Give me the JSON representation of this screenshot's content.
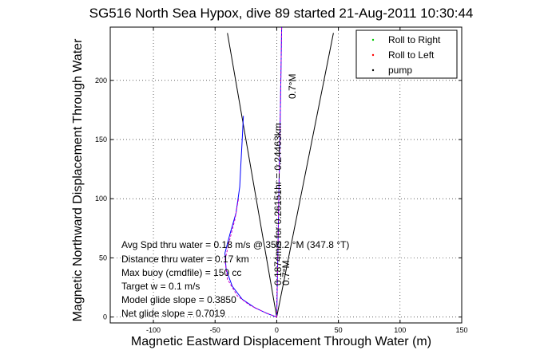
{
  "chart_data": {
    "type": "line",
    "title": "SG516 North Sea Hypox, dive 89 started 21-Aug-2011 10:30:44",
    "xlabel": "Magnetic Eastward Displacement Through Water (m)",
    "ylabel": "Magnetic Northward Displacement Through Water",
    "xlim": [
      -135,
      150
    ],
    "ylim": [
      -5,
      245
    ],
    "xticks": [
      -100,
      -50,
      0,
      50,
      100,
      150
    ],
    "yticks": [
      0,
      50,
      100,
      150,
      200
    ],
    "grid": true,
    "legend_position": "top-right",
    "legend": [
      {
        "label": "Roll to Right",
        "color": "#00cc00"
      },
      {
        "label": "Roll to Left",
        "color": "#ff0000"
      },
      {
        "label": "pump",
        "color": "#000000"
      }
    ],
    "series": [
      {
        "color": "#0000ff",
        "style": "line",
        "points": [
          [
            0,
            0
          ],
          [
            -8,
            3
          ],
          [
            -18,
            8
          ],
          [
            -28,
            15
          ],
          [
            -36,
            26
          ],
          [
            -41,
            40
          ],
          [
            -42,
            54
          ],
          [
            -38,
            70
          ],
          [
            -33,
            88
          ],
          [
            -30,
            110
          ],
          [
            -29,
            130
          ],
          [
            -28,
            150
          ],
          [
            -27,
            170
          ]
        ]
      },
      {
        "color": "#cc00cc",
        "style": "dashed",
        "points": [
          [
            0,
            0
          ],
          [
            -10,
            4
          ],
          [
            -22,
            10
          ],
          [
            -32,
            18
          ],
          [
            -40,
            32
          ],
          [
            -42,
            48
          ],
          [
            -38,
            66
          ],
          [
            -34,
            82
          ],
          [
            -31,
            100
          ]
        ]
      },
      {
        "color": "#0000ff",
        "style": "line",
        "points": [
          [
            0,
            0
          ],
          [
            1,
            60
          ],
          [
            2,
            120
          ],
          [
            3,
            180
          ],
          [
            4,
            245
          ]
        ]
      },
      {
        "color": "#cc00cc",
        "style": "dashed",
        "points": [
          [
            0,
            0
          ],
          [
            1,
            60
          ],
          [
            2,
            120
          ],
          [
            3,
            180
          ],
          [
            4,
            245
          ]
        ]
      }
    ],
    "cone_lines": [
      {
        "points": [
          [
            0,
            0
          ],
          [
            -40,
            240
          ]
        ]
      },
      {
        "points": [
          [
            0,
            0
          ],
          [
            46,
            240
          ]
        ]
      }
    ],
    "annotations": [
      "Avg Spd thru water =  0.18 m/s @ 350.2   °M (347.8 °T)",
      "Distance thru water = 0.17 km",
      "Max buoy (cmdfile) = 150 cc",
      "Target w = 0.1 m/s",
      "Model glide slope = 0.3850",
      "Net glide slope = 0.7019"
    ],
    "rotated_labels": [
      "0.7°M",
      "0.1874m/s for 0.26151hr = 0.24463km",
      "0.7°M"
    ]
  }
}
